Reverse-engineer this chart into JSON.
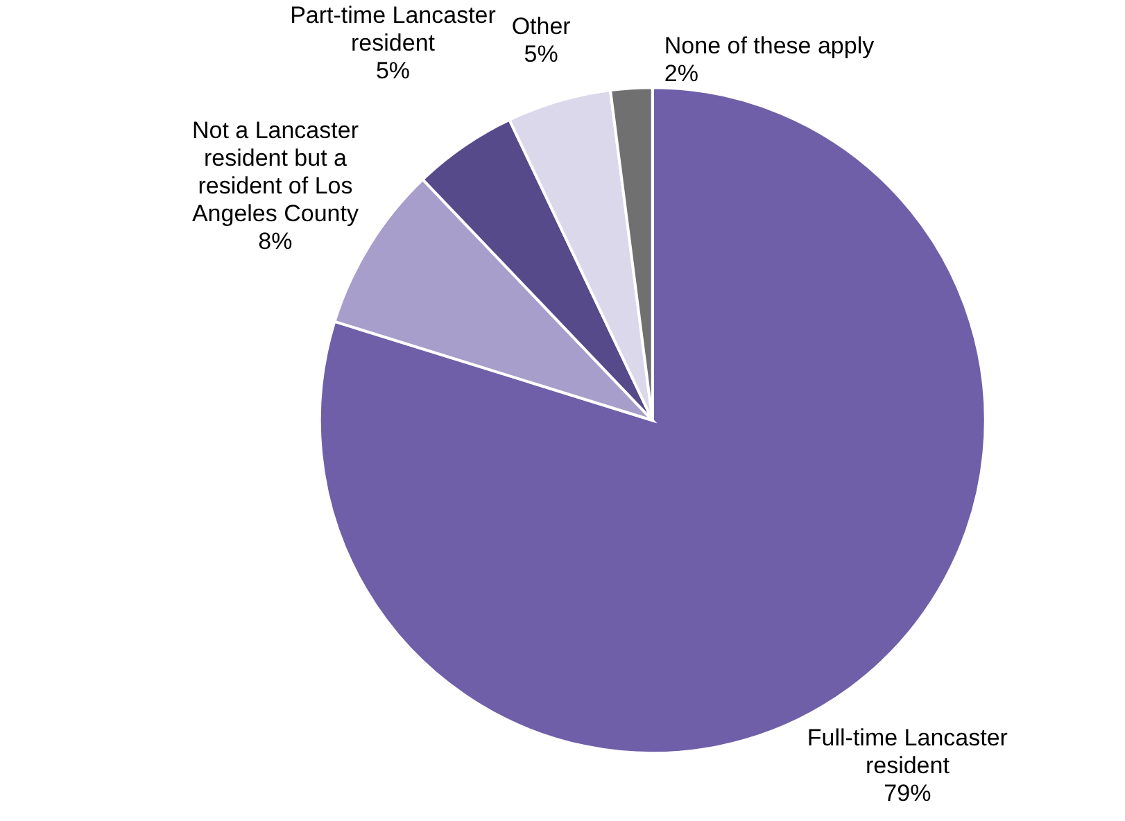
{
  "chart_data": {
    "type": "pie",
    "categories": [
      "Full-time Lancaster resident",
      "Not a Lancaster resident but a resident of Los Angeles County",
      "Part-time Lancaster resident",
      "Other",
      "None of these apply"
    ],
    "values": [
      79,
      8,
      5,
      5,
      2
    ],
    "value_labels": [
      "79%",
      "8%",
      "5%",
      "5%",
      "2%"
    ],
    "colors": [
      "#6f5fa8",
      "#a79ecb",
      "#574a8a",
      "#dcd8ec",
      "#707070"
    ]
  }
}
